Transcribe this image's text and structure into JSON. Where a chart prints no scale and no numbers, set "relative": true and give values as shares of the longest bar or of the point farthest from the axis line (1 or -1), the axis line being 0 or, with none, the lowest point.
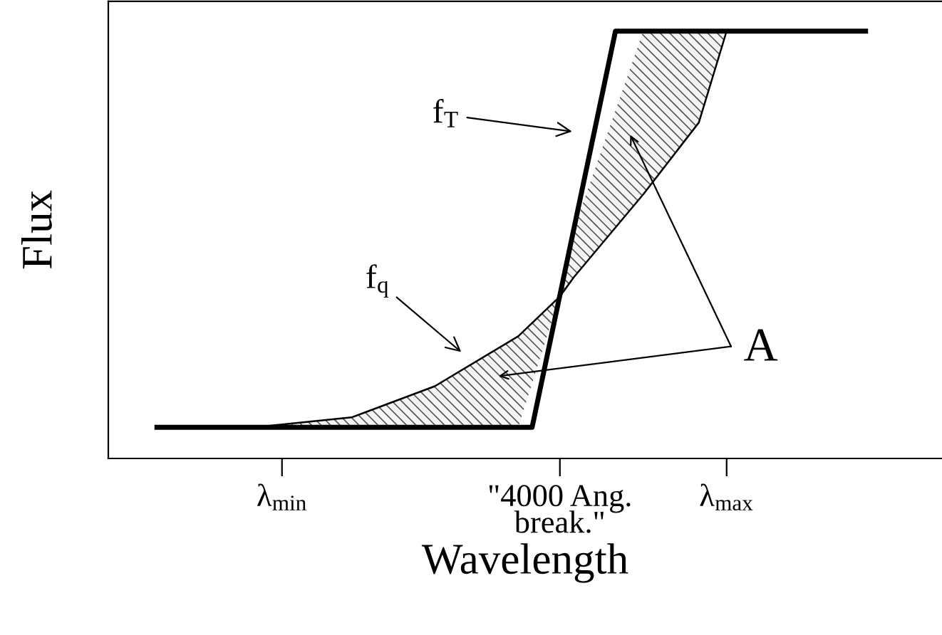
{
  "chart_data": {
    "type": "line",
    "relative": true,
    "xlabel": "Wavelength",
    "ylabel": "Flux",
    "categories": [
      null,
      null,
      null,
      null,
      null,
      null,
      null,
      null,
      null,
      null,
      null,
      null,
      "λ$_{min}$",
      null,
      null,
      null,
      null,
      null,
      null,
      null,
      null,
      null,
      null,
      null,
      null,
      null,
      null,
      null,
      null,
      null,
      null,
      null,
      "\"4000 Ang.\nbreak.\"",
      null,
      null,
      null,
      null,
      null,
      null,
      null,
      null,
      null,
      null,
      null,
      "λ$_{max}$",
      null,
      null,
      null,
      null,
      null,
      null,
      null,
      null,
      null,
      null,
      null,
      null,
      null,
      null,
      null
    ],
    "grid": false,
    "marker": "none",
    "series": [
      {
        "name": "f$_{T}$",
        "color": "#000000",
        "line_style": "solid",
        "values": [
          null,
          null,
          null,
          0.073,
          null,
          null,
          null,
          null,
          null,
          null,
          null,
          null,
          null,
          null,
          null,
          null,
          null,
          null,
          null,
          null,
          null,
          null,
          null,
          null,
          null,
          null,
          null,
          null,
          null,
          null,
          0.073,
          null,
          null,
          null,
          null,
          null,
          1,
          null,
          null,
          null,
          null,
          null,
          null,
          null,
          null,
          null,
          null,
          null,
          null,
          null,
          null,
          null,
          null,
          null,
          1,
          null,
          null,
          null,
          null,
          null
        ]
      },
      {
        "name": "f$_{q}$",
        "color": "#000000",
        "line_style": "solid",
        "values": [
          null,
          null,
          null,
          0.073,
          null,
          null,
          null,
          null,
          null,
          null,
          0.073,
          null,
          null,
          null,
          null,
          null,
          null,
          0.096,
          null,
          null,
          null,
          null,
          null,
          0.169,
          null,
          null,
          null,
          null,
          null,
          0.286,
          null,
          null,
          0.379,
          0.424,
          null,
          null,
          null,
          null,
          0.618,
          null,
          null,
          null,
          0.786,
          null,
          1,
          null,
          null,
          null,
          null,
          null,
          null,
          null,
          null,
          null,
          null,
          null,
          null,
          null,
          null,
          null
        ],
        "lower": [
          null,
          null,
          null,
          0.073,
          null,
          null,
          null,
          null,
          null,
          null,
          0.073,
          null,
          null,
          null,
          null,
          null,
          null,
          0.073,
          null,
          null,
          null,
          null,
          null,
          0.073,
          null,
          null,
          null,
          null,
          null,
          0.073,
          null,
          null,
          0.382,
          0.536,
          null,
          null,
          null,
          null,
          1,
          null,
          null,
          null,
          1,
          null,
          1,
          null,
          null,
          null,
          null,
          null,
          null,
          null,
          null,
          null,
          null,
          null,
          null,
          null,
          null,
          null
        ],
        "upper": [
          null,
          null,
          null,
          0.073,
          null,
          null,
          null,
          null,
          null,
          null,
          0.073,
          null,
          null,
          null,
          null,
          null,
          null,
          0.096,
          null,
          null,
          null,
          null,
          null,
          0.169,
          null,
          null,
          null,
          null,
          null,
          0.286,
          null,
          null,
          0.379,
          0.424,
          null,
          null,
          null,
          null,
          0.618,
          null,
          null,
          null,
          0.786,
          null,
          1,
          null,
          null,
          null,
          null,
          null,
          null,
          null,
          null,
          null,
          null,
          null,
          null,
          null,
          null,
          null
        ]
      }
    ],
    "annotations": [
      "A"
    ]
  }
}
